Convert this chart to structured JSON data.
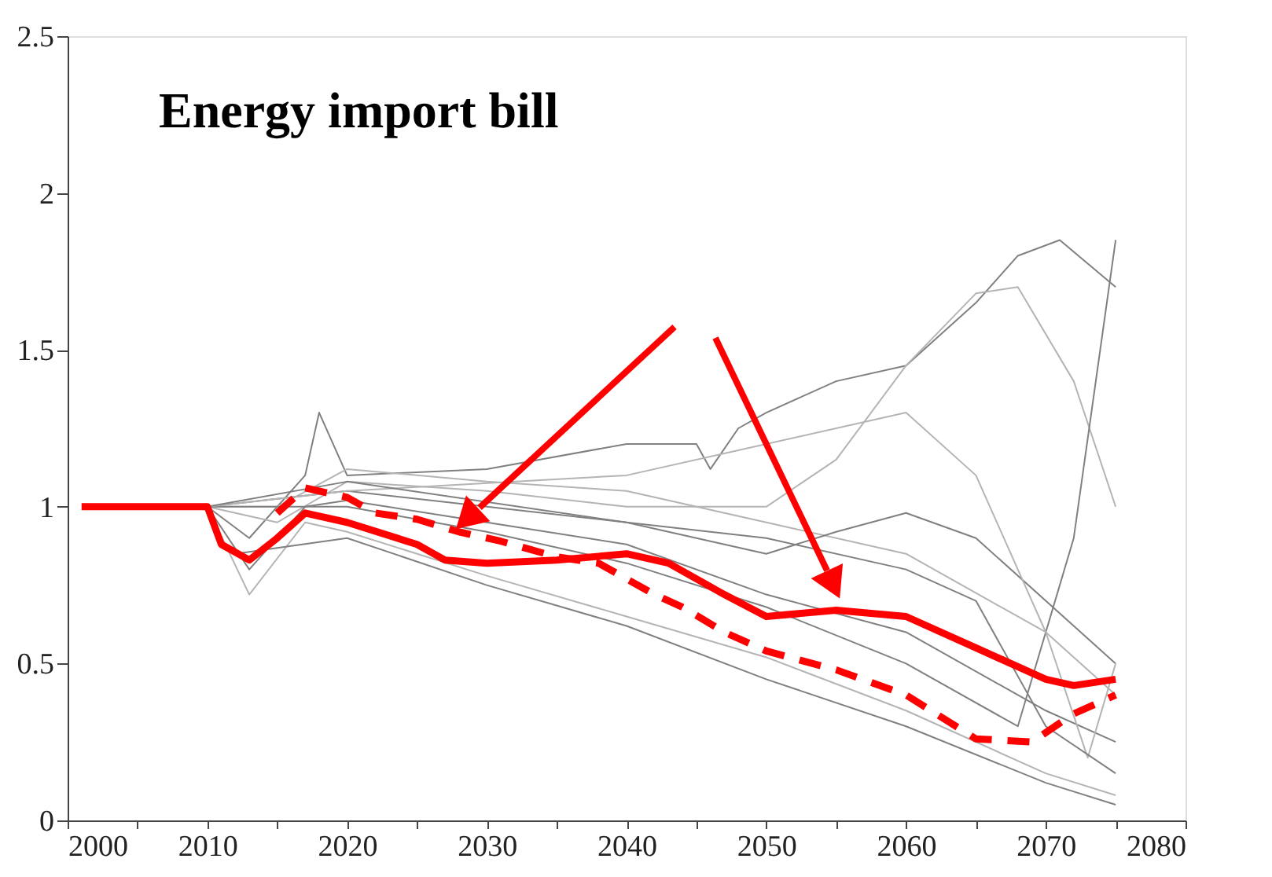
{
  "chart_data": {
    "type": "line",
    "title": "Energy import bill",
    "xlim": [
      2000,
      2080
    ],
    "ylim": [
      0,
      2.5
    ],
    "xticks": [
      2000,
      {
        "value": 2005,
        "label": null
      },
      2010,
      {
        "value": 2015,
        "label": null
      },
      2020,
      {
        "value": 2025,
        "label": null
      },
      2030,
      {
        "value": 2035,
        "label": null
      },
      2040,
      {
        "value": 2045,
        "label": null
      },
      2050,
      {
        "value": 2055,
        "label": null
      },
      2060,
      {
        "value": 2065,
        "label": null
      },
      2070,
      {
        "value": 2075,
        "label": null
      },
      2080
    ],
    "yticks": [
      0,
      0.5,
      1,
      1.5,
      2,
      2.5
    ],
    "series": [
      {
        "color": "#808080",
        "x": [
          2010,
          2013,
          2017,
          2018,
          2020,
          2030,
          2040,
          2045,
          2046,
          2048,
          2050,
          2055,
          2060,
          2065,
          2068,
          2071,
          2075
        ],
        "values": [
          1.0,
          0.9,
          1.1,
          1.3,
          1.1,
          1.12,
          1.2,
          1.2,
          1.12,
          1.25,
          1.3,
          1.4,
          1.45,
          1.65,
          1.8,
          1.85,
          1.7
        ]
      },
      {
        "color": "#b4b4b4",
        "x": [
          2010,
          2015,
          2020,
          2030,
          2040,
          2050,
          2055,
          2060,
          2065,
          2068,
          2072,
          2075
        ],
        "values": [
          1.0,
          0.95,
          1.08,
          1.05,
          1.0,
          1.0,
          1.15,
          1.45,
          1.68,
          1.7,
          1.4,
          1.0
        ]
      },
      {
        "color": "#808080",
        "x": [
          2010,
          2013,
          2017,
          2020,
          2030,
          2040,
          2050,
          2060,
          2070,
          2075
        ],
        "values": [
          1.0,
          0.8,
          1.0,
          1.02,
          0.95,
          0.88,
          0.72,
          0.6,
          0.35,
          0.25
        ]
      },
      {
        "color": "#b4b4b4",
        "x": [
          2010,
          2013,
          2017,
          2020,
          2030,
          2040,
          2050,
          2060,
          2070,
          2075
        ],
        "values": [
          1.0,
          0.72,
          0.95,
          0.92,
          0.78,
          0.65,
          0.52,
          0.35,
          0.15,
          0.08
        ]
      },
      {
        "color": "#808080",
        "x": [
          2012,
          2020,
          2030,
          2040,
          2050,
          2060,
          2070,
          2075
        ],
        "values": [
          0.85,
          0.9,
          0.75,
          0.62,
          0.45,
          0.3,
          0.12,
          0.05
        ]
      },
      {
        "color": "#b4b4b4",
        "x": [
          2010,
          2015,
          2020,
          2030,
          2040,
          2050,
          2060,
          2070,
          2075
        ],
        "values": [
          1.0,
          1.0,
          1.12,
          1.08,
          1.05,
          0.95,
          0.85,
          0.6,
          0.4
        ]
      },
      {
        "color": "#808080",
        "x": [
          2010,
          2020,
          2030,
          2040,
          2050,
          2055,
          2060,
          2065,
          2070,
          2075
        ],
        "values": [
          1.0,
          1.05,
          1.0,
          0.95,
          0.85,
          0.92,
          0.98,
          0.9,
          0.7,
          0.5
        ]
      },
      {
        "color": "#808080",
        "x": [
          2010,
          2020,
          2030,
          2040,
          2050,
          2060,
          2068,
          2072,
          2075
        ],
        "values": [
          1.0,
          1.0,
          0.92,
          0.82,
          0.68,
          0.5,
          0.3,
          0.9,
          1.85
        ]
      },
      {
        "color": "#b4b4b4",
        "x": [
          2010,
          2020,
          2040,
          2050,
          2060,
          2065,
          2070,
          2073,
          2075
        ],
        "values": [
          1.0,
          1.05,
          1.1,
          1.2,
          1.3,
          1.1,
          0.6,
          0.2,
          0.5
        ]
      },
      {
        "color": "#808080",
        "x": [
          2010,
          2020,
          2040,
          2050,
          2060,
          2065,
          2070,
          2075
        ],
        "values": [
          1.0,
          1.08,
          0.95,
          0.9,
          0.8,
          0.7,
          0.3,
          0.15
        ]
      },
      {
        "color": "#ff0000",
        "line_style": "solid",
        "x": [
          2001,
          2010,
          2011,
          2013,
          2015,
          2017,
          2020,
          2025,
          2027,
          2030,
          2035,
          2040,
          2043,
          2047,
          2050,
          2055,
          2060,
          2065,
          2070,
          2072,
          2075
        ],
        "values": [
          1.0,
          1.0,
          0.88,
          0.83,
          0.9,
          0.98,
          0.95,
          0.88,
          0.83,
          0.82,
          0.83,
          0.85,
          0.82,
          0.72,
          0.65,
          0.67,
          0.65,
          0.55,
          0.45,
          0.43,
          0.45
        ]
      },
      {
        "color": "#ff0000",
        "line_style": "dashed",
        "x": [
          2015,
          2017,
          2020,
          2022,
          2025,
          2028,
          2031,
          2035,
          2038,
          2042,
          2044,
          2047,
          2050,
          2055,
          2060,
          2065,
          2069,
          2072,
          2075
        ],
        "values": [
          0.98,
          1.06,
          1.03,
          0.98,
          0.96,
          0.92,
          0.89,
          0.84,
          0.82,
          0.72,
          0.68,
          0.6,
          0.54,
          0.48,
          0.4,
          0.26,
          0.25,
          0.34,
          0.4
        ]
      }
    ]
  }
}
